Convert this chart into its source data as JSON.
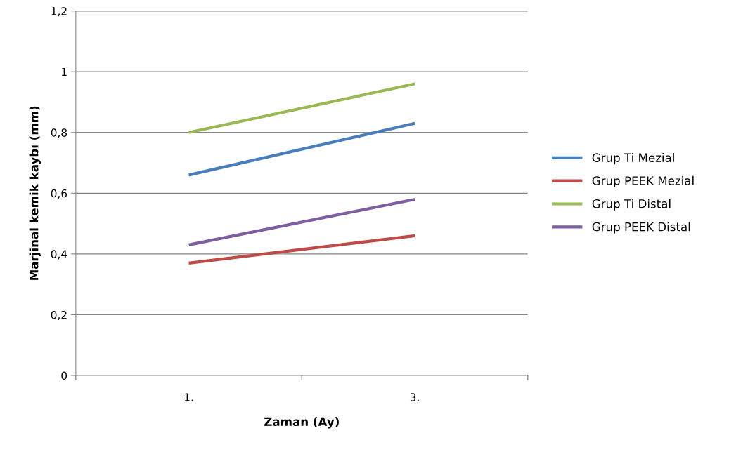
{
  "chart_data": {
    "type": "line",
    "xlabel": "Zaman (Ay)",
    "ylabel": "Marjinal kemik kaybı (mm)",
    "categories": [
      "1.",
      "3."
    ],
    "series": [
      {
        "name": "Grup Ti Mezial",
        "color": "#4a7ebb",
        "values": [
          0.66,
          0.83
        ]
      },
      {
        "name": "Grup PEEK Mezial",
        "color": "#be4b48",
        "values": [
          0.37,
          0.46
        ]
      },
      {
        "name": "Grup Ti Distal",
        "color": "#98b954",
        "values": [
          0.8,
          0.96
        ]
      },
      {
        "name": "Grup PEEK Distal",
        "color": "#7d5fa0",
        "values": [
          0.43,
          0.58
        ]
      }
    ],
    "ylim": [
      0,
      1.2
    ],
    "yticks": [
      0,
      {
        "value": 0.2,
        "label": "0,2"
      },
      {
        "value": 0.4,
        "label": "0,4"
      },
      {
        "value": 0.6,
        "label": "0,6"
      },
      {
        "value": 0.8,
        "label": "0,8"
      },
      1,
      {
        "value": 1.2,
        "label": "1,2"
      }
    ],
    "grid": "y",
    "legend": "right",
    "marker": "none",
    "line_style": "solid"
  }
}
